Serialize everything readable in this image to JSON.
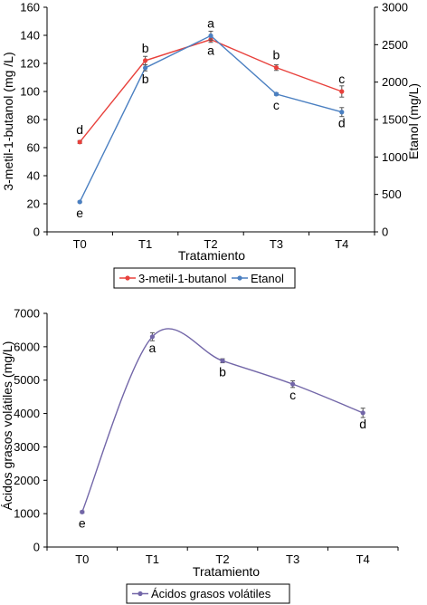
{
  "chart_data": [
    {
      "type": "line",
      "categories": [
        "T0",
        "T1",
        "T2",
        "T3",
        "T4"
      ],
      "xlabel": "Tratamiento",
      "ylabel": "3-metil-1-butanol  (mg /L)",
      "y2label": "Etanol  (mg/L)",
      "ylim": [
        0,
        160
      ],
      "y2lim": [
        0,
        3000
      ],
      "yticks": [
        0,
        20,
        40,
        60,
        80,
        100,
        120,
        140,
        160
      ],
      "y2ticks": [
        0,
        500,
        1000,
        1500,
        2000,
        2500,
        3000
      ],
      "grid": false,
      "legend_position": "bottom",
      "series": [
        {
          "name": "3-metil-1-butanol",
          "axis": "left",
          "color": "#e8413c",
          "values": [
            64,
            122,
            137,
            117,
            100
          ],
          "errors": [
            1,
            3,
            2,
            2,
            4
          ],
          "letters": [
            "d",
            "b",
            "a",
            "b",
            "c"
          ]
        },
        {
          "name": "Etanol",
          "axis": "right",
          "color": "#4a7fc1",
          "values": [
            400,
            2190,
            2620,
            1840,
            1600
          ],
          "errors": [
            10,
            40,
            60,
            15,
            60
          ],
          "letters": [
            "e",
            "b",
            "a",
            "c",
            "d"
          ]
        }
      ]
    },
    {
      "type": "line",
      "categories": [
        "T0",
        "T1",
        "T2",
        "T3",
        "T4"
      ],
      "xlabel": "Tratamiento",
      "ylabel": "Ácidos grasos volátiles (mg/L)",
      "ylim": [
        0,
        7000
      ],
      "yticks": [
        0,
        1000,
        2000,
        3000,
        4000,
        5000,
        6000,
        7000
      ],
      "grid": false,
      "legend_position": "bottom",
      "series": [
        {
          "name": "Ácidos grasos volátiles",
          "color": "#7266a8",
          "values": [
            1050,
            6300,
            5580,
            4880,
            4020
          ],
          "errors": [
            30,
            120,
            60,
            100,
            140
          ],
          "letters": [
            "e",
            "a",
            "b",
            "c",
            "d"
          ]
        }
      ]
    }
  ]
}
